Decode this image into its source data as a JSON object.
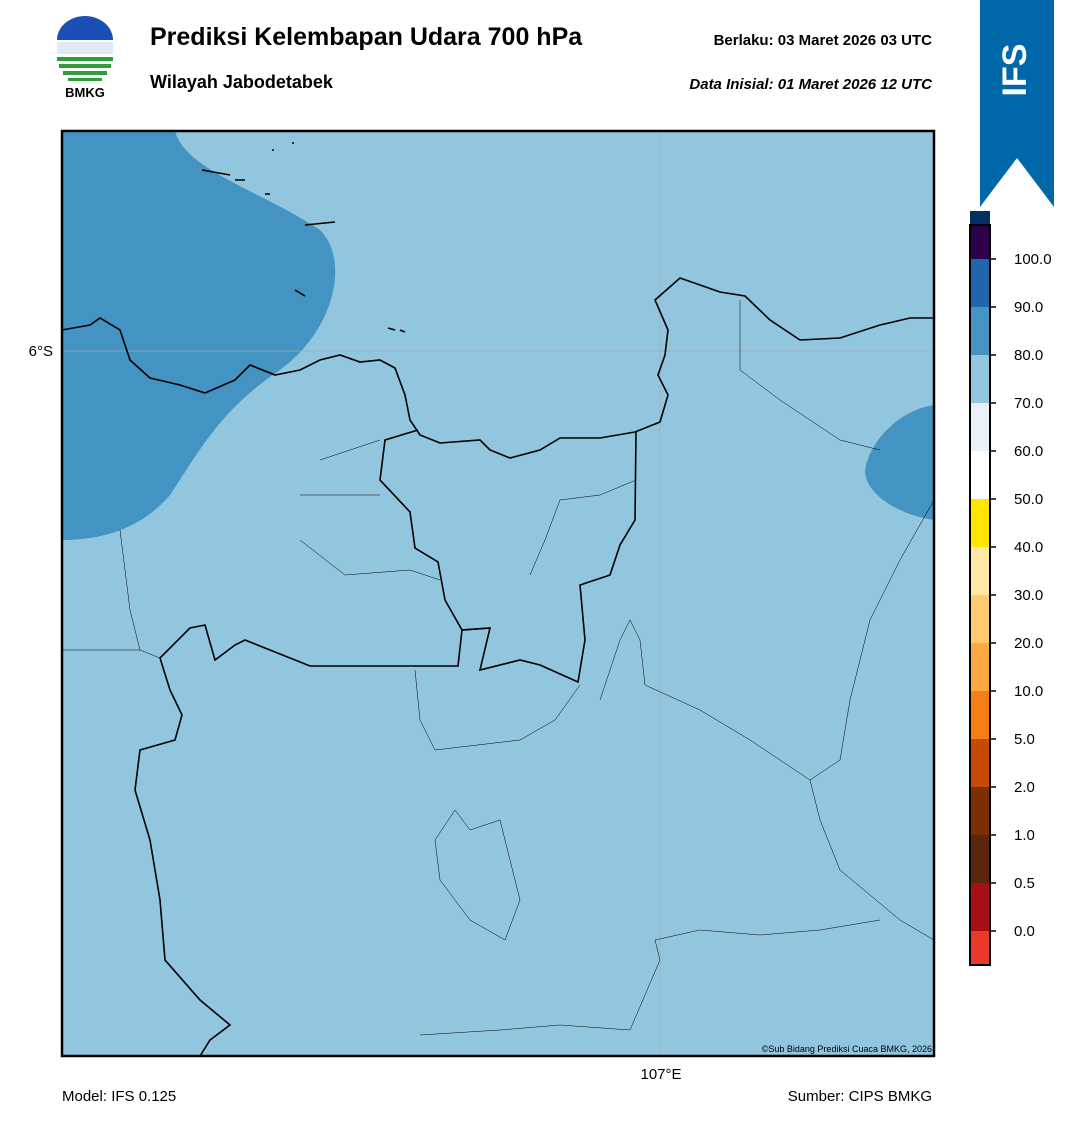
{
  "header": {
    "title": "Prediksi Kelembapan Udara 700 hPa",
    "subtitle": "Wilayah Jabodetabek",
    "valid": "Berlaku:  03 Maret 2026 03 UTC",
    "init": "Data Inisial:  01 Maret 2026 12 UTC",
    "logo": "BMKG",
    "badge": "IFS"
  },
  "map": {
    "lat_label": "6°S",
    "lon_label": "107°E",
    "credit": "©Sub Bidang Prediksi Cuaca BMKG, 2026",
    "base_color": "#92c5de",
    "high_color": "#4393c3"
  },
  "colorbar": {
    "ticks": [
      "0.0",
      "0.5",
      "1.0",
      "2.0",
      "5.0",
      "10.0",
      "20.0",
      "30.0",
      "40.0",
      "50.0",
      "60.0",
      "70.0",
      "80.0",
      "90.0",
      "100.0"
    ],
    "colors": [
      "#e8392b",
      "#a50f15",
      "#5a260d",
      "#7f2e04",
      "#c54a04",
      "#f47f14",
      "#fda840",
      "#fecb70",
      "#fee8a6",
      "#ffe500",
      "#ffffff",
      "#e8f1f8",
      "#92c5de",
      "#4393c3",
      "#2166ac",
      "#053061",
      "#2d004b"
    ]
  },
  "footer": {
    "model": "Model: IFS 0.125",
    "source": "Sumber: CIPS BMKG"
  }
}
